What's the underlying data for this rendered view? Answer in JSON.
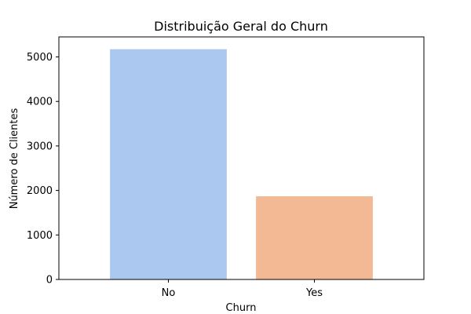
{
  "chart_data": {
    "type": "bar",
    "title": "Distribuição Geral do Churn",
    "xlabel": "Churn",
    "ylabel": "Número de Clientes",
    "categories": [
      "No",
      "Yes"
    ],
    "values": [
      5174,
      1869
    ],
    "colors": [
      "#abc9f0",
      "#f2b994"
    ],
    "ylim": [
      0,
      5450
    ],
    "yticks": [
      0,
      1000,
      2000,
      3000,
      4000,
      5000
    ],
    "grid": false,
    "legend": "none"
  }
}
